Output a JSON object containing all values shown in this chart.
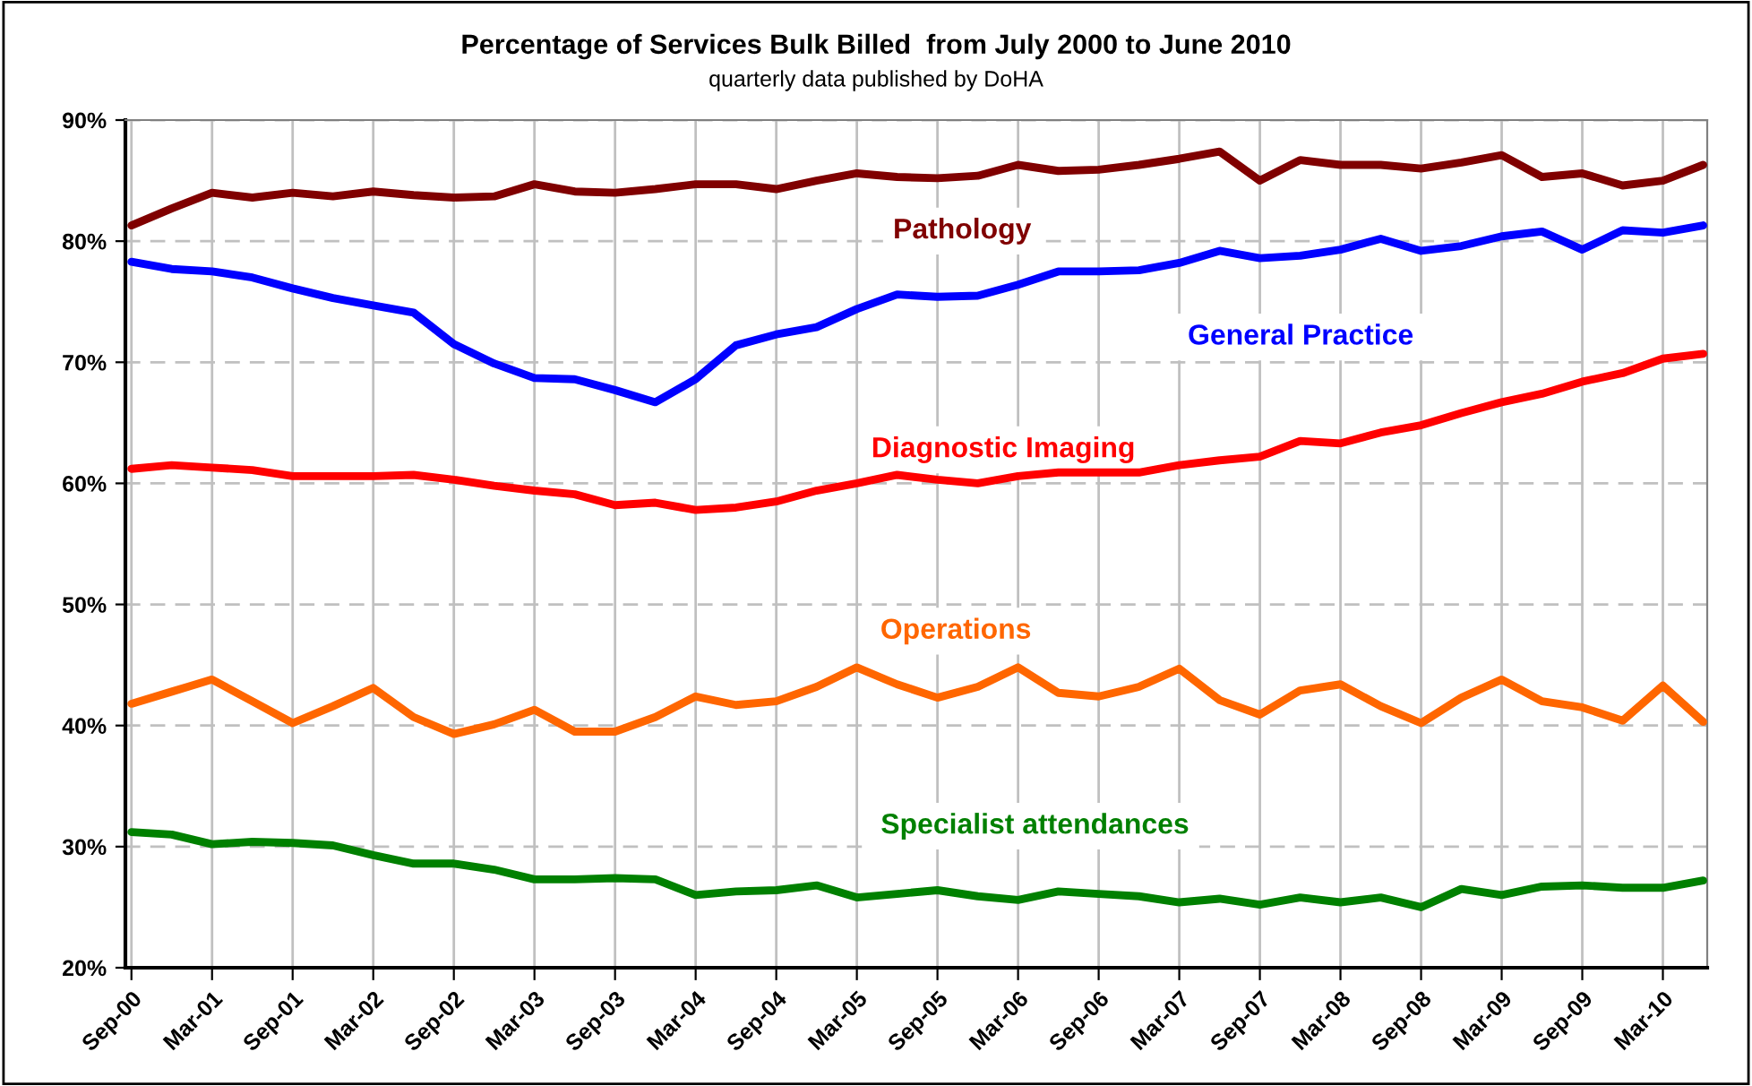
{
  "chart_data": {
    "type": "line",
    "title": "Percentage of Services Bulk Billed  from July 2000 to June 2010",
    "subtitle": "quarterly data published by DoHA",
    "categories": [
      "Sep-00",
      null,
      "Mar-01",
      null,
      "Sep-01",
      null,
      "Mar-02",
      null,
      "Sep-02",
      null,
      "Mar-03",
      null,
      "Sep-03",
      null,
      "Mar-04",
      null,
      "Sep-04",
      null,
      "Mar-05",
      null,
      "Sep-05",
      null,
      "Mar-06",
      null,
      "Sep-06",
      null,
      "Mar-07",
      null,
      "Sep-07",
      null,
      "Mar-08",
      null,
      "Sep-08",
      null,
      "Mar-09",
      null,
      "Sep-09",
      null,
      "Mar-10",
      null
    ],
    "ylim": [
      20,
      90
    ],
    "yticks": [
      {
        "value": 20,
        "label": "20%"
      },
      {
        "value": 30,
        "label": "30%"
      },
      {
        "value": 40,
        "label": "40%"
      },
      {
        "value": 50,
        "label": "50%"
      },
      {
        "value": 60,
        "label": "60%"
      },
      {
        "value": 70,
        "label": "70%"
      },
      {
        "value": 80,
        "label": "80%"
      },
      {
        "value": 90,
        "label": "90%"
      }
    ],
    "grid": true,
    "legend": false,
    "marker": "none",
    "line_style": "solid",
    "series": [
      {
        "name": "Pathology",
        "color": "#800000",
        "values": [
          81.3,
          82.7,
          84.0,
          83.6,
          84.0,
          83.7,
          84.1,
          83.8,
          83.6,
          83.7,
          84.7,
          84.1,
          84.0,
          84.3,
          84.7,
          84.7,
          84.3,
          85.0,
          85.6,
          85.3,
          85.2,
          85.4,
          86.3,
          85.8,
          85.9,
          86.3,
          86.8,
          87.4,
          85.0,
          86.7,
          86.3,
          86.3,
          86.0,
          86.5,
          87.1,
          85.3,
          85.6,
          84.6,
          85.0,
          86.3
        ]
      },
      {
        "name": "General Practice",
        "color": "#0000ff",
        "values": [
          78.3,
          77.7,
          77.5,
          77.0,
          76.1,
          75.3,
          74.7,
          74.1,
          71.5,
          69.9,
          68.7,
          68.6,
          67.7,
          66.7,
          68.6,
          71.4,
          72.3,
          72.9,
          74.4,
          75.6,
          75.4,
          75.5,
          76.4,
          77.5,
          77.5,
          77.6,
          78.2,
          79.2,
          78.6,
          78.8,
          79.3,
          80.2,
          79.2,
          79.6,
          80.4,
          80.8,
          79.3,
          80.9,
          80.7,
          81.3
        ]
      },
      {
        "name": "Diagnostic Imaging",
        "color": "#ff0000",
        "values": [
          61.2,
          61.5,
          61.3,
          61.1,
          60.6,
          60.6,
          60.6,
          60.7,
          60.3,
          59.8,
          59.4,
          59.1,
          58.2,
          58.4,
          57.8,
          58.0,
          58.5,
          59.4,
          60.0,
          60.7,
          60.3,
          60.0,
          60.6,
          60.9,
          60.9,
          60.9,
          61.5,
          61.9,
          62.2,
          63.5,
          63.3,
          64.2,
          64.8,
          65.8,
          66.7,
          67.4,
          68.4,
          69.1,
          70.3,
          70.7
        ]
      },
      {
        "name": "Operations",
        "color": "#ff6600",
        "values": [
          41.8,
          42.8,
          43.8,
          42.0,
          40.2,
          41.6,
          43.1,
          40.7,
          39.3,
          40.1,
          41.3,
          39.5,
          39.5,
          40.7,
          42.4,
          41.7,
          42.0,
          43.2,
          44.8,
          43.4,
          42.3,
          43.2,
          44.8,
          42.7,
          42.4,
          43.2,
          44.7,
          42.1,
          40.9,
          42.9,
          43.4,
          41.6,
          40.2,
          42.3,
          43.8,
          42.0,
          41.5,
          40.4,
          43.3,
          40.3
        ]
      },
      {
        "name": "Specialist attendances",
        "color": "#008000",
        "values": [
          31.2,
          31.0,
          30.2,
          30.4,
          30.3,
          30.1,
          29.3,
          28.6,
          28.6,
          28.1,
          27.3,
          27.3,
          27.4,
          27.3,
          26.0,
          26.3,
          26.4,
          26.8,
          25.8,
          26.1,
          26.4,
          25.9,
          25.6,
          26.3,
          26.1,
          25.9,
          25.4,
          25.7,
          25.2,
          25.8,
          25.4,
          25.8,
          25.0,
          26.5,
          26.0,
          26.7,
          26.8,
          26.6,
          26.6,
          27.2
        ]
      }
    ]
  }
}
